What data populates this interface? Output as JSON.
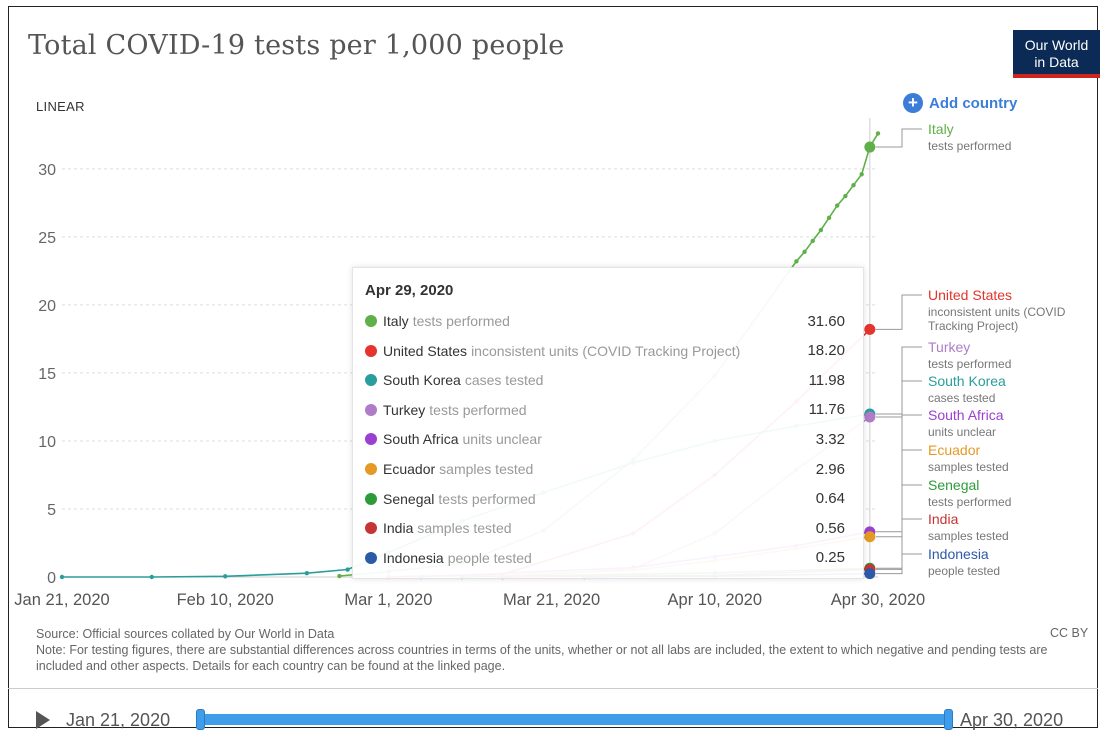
{
  "title": "Total COVID-19 tests per 1,000 people",
  "logo": {
    "line1": "Our World",
    "line2": "in Data"
  },
  "scale_button": "LINEAR",
  "add_country": "Add country",
  "tooltip": {
    "date": "Apr 29, 2020",
    "rows": [
      {
        "country": "Italy",
        "metric": "tests performed",
        "value": "31.60",
        "color": "#5fb04a"
      },
      {
        "country": "United States",
        "metric": "inconsistent units (COVID Tracking Project)",
        "value": "18.20",
        "color": "#e4342c"
      },
      {
        "country": "South Korea",
        "metric": "cases tested",
        "value": "11.98",
        "color": "#2a9d9d"
      },
      {
        "country": "Turkey",
        "metric": "tests performed",
        "value": "11.76",
        "color": "#b07cc8"
      },
      {
        "country": "South Africa",
        "metric": "units unclear",
        "value": "3.32",
        "color": "#9b3fd1"
      },
      {
        "country": "Ecuador",
        "metric": "samples tested",
        "value": "2.96",
        "color": "#e59a23"
      },
      {
        "country": "Senegal",
        "metric": "tests performed",
        "value": "0.64",
        "color": "#2e9b3b"
      },
      {
        "country": "India",
        "metric": "samples tested",
        "value": "0.56",
        "color": "#c63434"
      },
      {
        "country": "Indonesia",
        "metric": "people tested",
        "value": "0.25",
        "color": "#2c5aa8"
      }
    ]
  },
  "legend": [
    {
      "name": "Italy",
      "metric": "tests performed",
      "color": "#5fb04a"
    },
    {
      "name": "United States",
      "metric": "inconsistent units (COVID Tracking Project)",
      "color": "#e4342c"
    },
    {
      "name": "Turkey",
      "metric": "tests performed",
      "color": "#b07cc8"
    },
    {
      "name": "South Korea",
      "metric": "cases tested",
      "color": "#2a9d9d"
    },
    {
      "name": "South Africa",
      "metric": "units unclear",
      "color": "#9b3fd1"
    },
    {
      "name": "Ecuador",
      "metric": "samples tested",
      "color": "#e59a23"
    },
    {
      "name": "Senegal",
      "metric": "tests performed",
      "color": "#2e9b3b"
    },
    {
      "name": "India",
      "metric": "samples tested",
      "color": "#c63434"
    },
    {
      "name": "Indonesia",
      "metric": "people tested",
      "color": "#2c5aa8"
    }
  ],
  "source": "Source: Official sources collated by Our World in Data",
  "note": "Note: For testing figures, there are substantial differences across countries in terms of the units, whether or not all labs are included, the extent to which negative and pending tests are included and other aspects. Details for each country can be found at the linked page.",
  "license": "CC BY",
  "timeline": {
    "start": "Jan 21, 2020",
    "end": "Apr 30, 2020"
  },
  "chart_data": {
    "type": "line",
    "title": "Total COVID-19 tests per 1,000 people",
    "xlabel": "",
    "ylabel": "",
    "x_ticks": [
      "Jan 21, 2020",
      "Feb 10, 2020",
      "Mar 1, 2020",
      "Mar 21, 2020",
      "Apr 10, 2020",
      "Apr 30, 2020"
    ],
    "y_ticks": [
      0,
      5,
      10,
      15,
      20,
      25,
      30
    ],
    "xlim": [
      "2020-01-21",
      "2020-04-30"
    ],
    "ylim": [
      0,
      33
    ],
    "grid": "horizontal dashed",
    "highlight_date": "2020-04-29",
    "series": [
      {
        "name": "Italy",
        "color": "#5fb04a",
        "points": [
          [
            "2020-02-24",
            0.07
          ],
          [
            "2020-03-01",
            0.4
          ],
          [
            "2020-03-10",
            1.0
          ],
          [
            "2020-03-20",
            3.4
          ],
          [
            "2020-03-31",
            8.6
          ],
          [
            "2020-04-10",
            14.8
          ],
          [
            "2020-04-20",
            23.2
          ],
          [
            "2020-04-21",
            23.9
          ],
          [
            "2020-04-22",
            24.7
          ],
          [
            "2020-04-23",
            25.5
          ],
          [
            "2020-04-24",
            26.4
          ],
          [
            "2020-04-25",
            27.3
          ],
          [
            "2020-04-26",
            28.0
          ],
          [
            "2020-04-27",
            28.8
          ],
          [
            "2020-04-28",
            29.6
          ],
          [
            "2020-04-29",
            31.6
          ],
          [
            "2020-04-30",
            32.6
          ]
        ]
      },
      {
        "name": "United States",
        "color": "#e4342c",
        "points": [
          [
            "2020-03-01",
            0.0
          ],
          [
            "2020-03-15",
            0.2
          ],
          [
            "2020-03-31",
            3.2
          ],
          [
            "2020-04-10",
            7.5
          ],
          [
            "2020-04-20",
            12.9
          ],
          [
            "2020-04-29",
            18.2
          ]
        ]
      },
      {
        "name": "South Korea",
        "color": "#2a9d9d",
        "points": [
          [
            "2020-01-21",
            0.0
          ],
          [
            "2020-02-01",
            0.0
          ],
          [
            "2020-02-10",
            0.05
          ],
          [
            "2020-02-20",
            0.28
          ],
          [
            "2020-02-25",
            0.55
          ],
          [
            "2020-03-01",
            1.8
          ],
          [
            "2020-03-10",
            4.1
          ],
          [
            "2020-03-20",
            6.2
          ],
          [
            "2020-03-31",
            8.4
          ],
          [
            "2020-04-10",
            10.0
          ],
          [
            "2020-04-20",
            11.1
          ],
          [
            "2020-04-29",
            11.98
          ]
        ]
      },
      {
        "name": "Turkey",
        "color": "#b07cc8",
        "points": [
          [
            "2020-03-15",
            0.0
          ],
          [
            "2020-03-31",
            0.6
          ],
          [
            "2020-04-10",
            3.2
          ],
          [
            "2020-04-20",
            7.9
          ],
          [
            "2020-04-29",
            11.76
          ]
        ]
      },
      {
        "name": "South Africa",
        "color": "#9b3fd1",
        "points": [
          [
            "2020-03-05",
            0.0
          ],
          [
            "2020-03-31",
            0.7
          ],
          [
            "2020-04-10",
            1.5
          ],
          [
            "2020-04-20",
            2.3
          ],
          [
            "2020-04-29",
            3.32
          ]
        ]
      },
      {
        "name": "Ecuador",
        "color": "#e59a23",
        "points": [
          [
            "2020-03-10",
            0.0
          ],
          [
            "2020-03-31",
            0.5
          ],
          [
            "2020-04-10",
            1.2
          ],
          [
            "2020-04-20",
            2.1
          ],
          [
            "2020-04-29",
            2.96
          ]
        ]
      },
      {
        "name": "Senegal",
        "color": "#2e9b3b",
        "points": [
          [
            "2020-03-10",
            0.0
          ],
          [
            "2020-04-10",
            0.3
          ],
          [
            "2020-04-29",
            0.64
          ]
        ]
      },
      {
        "name": "India",
        "color": "#c63434",
        "points": [
          [
            "2020-03-15",
            0.0
          ],
          [
            "2020-04-10",
            0.12
          ],
          [
            "2020-04-29",
            0.56
          ]
        ]
      },
      {
        "name": "Indonesia",
        "color": "#2c5aa8",
        "points": [
          [
            "2020-03-25",
            0.0
          ],
          [
            "2020-04-10",
            0.06
          ],
          [
            "2020-04-29",
            0.25
          ]
        ]
      }
    ]
  }
}
